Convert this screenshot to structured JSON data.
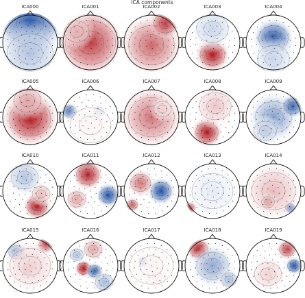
{
  "chart_data": {
    "type": "heatmap",
    "title": "ICA components",
    "colormap": [
      "#1f4fa3",
      "#ffffff",
      "#b0141c"
    ],
    "grid": {
      "rows": 4,
      "cols": 5
    },
    "components": [
      {
        "name": "ICA000",
        "blobs": [
          [
            0.0,
            -0.7,
            1.0,
            -1.0
          ],
          [
            0.0,
            0.4,
            0.9,
            -0.35
          ]
        ]
      },
      {
        "name": "ICA001",
        "blobs": [
          [
            0.0,
            0.0,
            1.0,
            0.85
          ],
          [
            -0.5,
            -0.4,
            0.45,
            0.35
          ]
        ]
      },
      {
        "name": "ICA002",
        "blobs": [
          [
            0.0,
            0.1,
            0.9,
            0.65
          ],
          [
            0.5,
            -0.7,
            0.4,
            0.85
          ]
        ]
      },
      {
        "name": "ICA003",
        "blobs": [
          [
            0.0,
            0.45,
            0.45,
            1.0
          ],
          [
            0.0,
            -0.5,
            0.6,
            -0.25
          ]
        ]
      },
      {
        "name": "ICA004",
        "blobs": [
          [
            0.0,
            -0.15,
            0.55,
            -1.0
          ],
          [
            0.0,
            0.6,
            0.6,
            -0.25
          ]
        ]
      },
      {
        "name": "ICA005",
        "blobs": [
          [
            0.0,
            0.05,
            0.8,
            1.0
          ],
          [
            -0.1,
            -0.6,
            0.5,
            0.4
          ]
        ]
      },
      {
        "name": "ICA006",
        "blobs": [
          [
            -0.75,
            -0.2,
            0.2,
            -1.0
          ],
          [
            0.3,
            -0.2,
            0.15,
            -0.4
          ],
          [
            0.0,
            0.3,
            0.8,
            0.05
          ]
        ]
      },
      {
        "name": "ICA007",
        "blobs": [
          [
            0.0,
            0.0,
            0.9,
            0.6
          ],
          [
            0.4,
            -0.3,
            0.3,
            0.2
          ]
        ]
      },
      {
        "name": "ICA008",
        "blobs": [
          [
            -0.2,
            0.55,
            0.4,
            1.0
          ],
          [
            0.1,
            -0.4,
            0.6,
            0.25
          ]
        ]
      },
      {
        "name": "ICA009",
        "blobs": [
          [
            0.0,
            0.0,
            0.7,
            -0.55
          ],
          [
            0.7,
            -0.4,
            0.3,
            -0.9
          ],
          [
            -0.3,
            0.5,
            0.4,
            -0.3
          ]
        ]
      },
      {
        "name": "ICA010",
        "blobs": [
          [
            0.25,
            0.55,
            0.35,
            1.0
          ],
          [
            -0.2,
            -0.5,
            0.5,
            -0.35
          ],
          [
            0.4,
            0.1,
            0.3,
            0.3
          ]
        ]
      },
      {
        "name": "ICA011",
        "blobs": [
          [
            0.65,
            0.15,
            0.3,
            -1.0
          ],
          [
            -0.1,
            -0.6,
            0.4,
            0.95
          ],
          [
            -0.5,
            0.3,
            0.3,
            0.4
          ]
        ]
      },
      {
        "name": "ICA012",
        "blobs": [
          [
            0.35,
            0.0,
            0.35,
            -1.0
          ],
          [
            -0.4,
            -0.3,
            0.35,
            0.6
          ],
          [
            -0.7,
            0.5,
            0.15,
            0.7
          ]
        ]
      },
      {
        "name": "ICA013",
        "blobs": [
          [
            -0.8,
            0.6,
            0.12,
            0.9
          ],
          [
            0.0,
            0.0,
            0.8,
            -0.12
          ]
        ]
      },
      {
        "name": "ICA014",
        "blobs": [
          [
            0.6,
            0.6,
            0.12,
            -1.0
          ],
          [
            0.0,
            0.0,
            0.85,
            0.3
          ],
          [
            -0.2,
            0.4,
            0.2,
            0.4
          ]
        ]
      },
      {
        "name": "ICA015",
        "blobs": [
          [
            0.55,
            -0.75,
            0.2,
            1.0
          ],
          [
            -0.1,
            0.1,
            0.15,
            0.7
          ],
          [
            -0.5,
            -0.5,
            0.25,
            -0.7
          ],
          [
            0.0,
            0.0,
            0.8,
            0.2
          ]
        ]
      },
      {
        "name": "ICA016",
        "blobs": [
          [
            -0.25,
            0.1,
            0.2,
            1.0
          ],
          [
            0.15,
            0.2,
            0.2,
            -0.9
          ],
          [
            0.1,
            -0.6,
            0.3,
            0.4
          ],
          [
            0.5,
            0.6,
            0.3,
            -0.4
          ],
          [
            -0.5,
            -0.4,
            0.2,
            -0.35
          ]
        ]
      },
      {
        "name": "ICA017",
        "blobs": [
          [
            -0.3,
            -0.15,
            0.12,
            -1.0
          ],
          [
            0.2,
            0.4,
            0.3,
            0.15
          ],
          [
            0.0,
            0.0,
            0.85,
            0.05
          ]
        ]
      },
      {
        "name": "ICA018",
        "blobs": [
          [
            -0.5,
            -0.6,
            0.3,
            1.0
          ],
          [
            0.0,
            0.0,
            0.6,
            -0.5
          ],
          [
            0.6,
            0.5,
            0.25,
            -0.4
          ]
        ]
      },
      {
        "name": "ICA019",
        "blobs": [
          [
            0.75,
            0.0,
            0.2,
            -1.0
          ],
          [
            0.5,
            -0.6,
            0.25,
            0.8
          ],
          [
            -0.2,
            0.3,
            0.5,
            0.2
          ]
        ]
      }
    ]
  }
}
